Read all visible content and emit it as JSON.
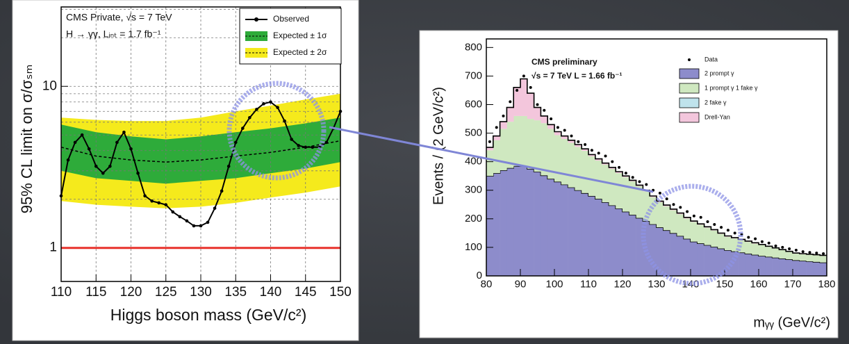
{
  "chart_data": [
    {
      "type": "line",
      "annotations": [
        "CMS Private, √s = 7 TeV",
        "H → γγ, Lᵢₙₜ = 1.7 fb⁻¹"
      ],
      "ylabel": "95% CL limit on σ/σₛₘ",
      "xlabel": "Higgs boson mass (GeV/c²)",
      "xlim": [
        110,
        150
      ],
      "xticks": [
        110,
        115,
        120,
        125,
        130,
        135,
        140,
        145,
        150
      ],
      "ylim": [
        0.62,
        31
      ],
      "ylog": true,
      "yticks": [
        1,
        10
      ],
      "minor_yticks": [
        2,
        3,
        4,
        5,
        6,
        7,
        8,
        9,
        20,
        30
      ],
      "grid": true,
      "reference": {
        "value": 1,
        "color": "#e8322b"
      },
      "series": [
        {
          "name": "Observed",
          "color": "#000000",
          "x": [
            110,
            111,
            112,
            113,
            114,
            115,
            116,
            117,
            118,
            119,
            120,
            121,
            122,
            123,
            124,
            125,
            126,
            127,
            128,
            129,
            130,
            131,
            132,
            133,
            134,
            135,
            136,
            137,
            138,
            139,
            140,
            141,
            142,
            143,
            144,
            145,
            146,
            147,
            148,
            149,
            150
          ],
          "values": [
            2.1,
            3.5,
            4.5,
            5.0,
            4.1,
            3.2,
            2.9,
            3.2,
            4.5,
            5.2,
            4.1,
            2.9,
            2.1,
            1.95,
            1.9,
            1.85,
            1.67,
            1.56,
            1.47,
            1.37,
            1.37,
            1.44,
            1.76,
            2.25,
            3.2,
            4.5,
            5.5,
            6.4,
            7.2,
            7.8,
            8.0,
            7.4,
            6.1,
            4.7,
            4.3,
            4.2,
            4.2,
            4.2,
            4.5,
            5.5,
            7.0
          ]
        }
      ],
      "bands": [
        {
          "name": "Expected ± 1σ",
          "color": "#2eab3a",
          "x": [
            110,
            115,
            120,
            125,
            130,
            135,
            140,
            145,
            150
          ],
          "lower": [
            3.0,
            2.7,
            2.6,
            2.5,
            2.6,
            2.7,
            2.9,
            3.1,
            3.4
          ],
          "values": [
            4.2,
            3.7,
            3.5,
            3.4,
            3.5,
            3.7,
            3.9,
            4.2,
            4.6
          ],
          "upper": [
            5.8,
            5.2,
            4.9,
            4.7,
            4.9,
            5.2,
            5.5,
            5.9,
            6.4
          ]
        },
        {
          "name": "Expected ± 2σ",
          "color": "#f5ea1c",
          "x": [
            110,
            115,
            120,
            125,
            130,
            135,
            140,
            145,
            150
          ],
          "lower": [
            1.95,
            1.85,
            1.8,
            1.76,
            1.8,
            1.9,
            2.05,
            2.2,
            2.4
          ],
          "upper": [
            6.4,
            6.2,
            6.1,
            6.1,
            6.4,
            7.0,
            7.6,
            8.3,
            9.0
          ]
        }
      ],
      "legend": "top-right"
    },
    {
      "type": "histogram",
      "annotations": [
        "CMS preliminary",
        "√s = 7 TeV L = 1.66 fb⁻¹"
      ],
      "ylabel": "Events / (2 GeV/c²)",
      "xlabel": "mᵧᵧ (GeV/c²)",
      "xlim": [
        80,
        180
      ],
      "xticks": [
        80,
        90,
        100,
        110,
        120,
        130,
        140,
        150,
        160,
        170,
        180
      ],
      "ylim": [
        0,
        830
      ],
      "yticks": [
        0,
        100,
        200,
        300,
        400,
        500,
        600,
        700,
        800
      ],
      "bins": [
        80,
        82,
        84,
        86,
        88,
        90,
        92,
        94,
        96,
        98,
        100,
        102,
        104,
        106,
        108,
        110,
        112,
        114,
        116,
        118,
        120,
        122,
        124,
        126,
        128,
        130,
        132,
        134,
        136,
        138,
        140,
        142,
        144,
        146,
        148,
        150,
        152,
        154,
        156,
        158,
        160,
        162,
        164,
        166,
        168,
        170,
        172,
        174,
        176,
        178,
        180
      ],
      "data": {
        "name": "Data",
        "color": "#000000",
        "values": [
          470,
          520,
          560,
          610,
          650,
          700,
          660,
          600,
          580,
          550,
          520,
          510,
          490,
          470,
          460,
          440,
          430,
          420,
          400,
          380,
          360,
          345,
          330,
          320,
          300,
          290,
          270,
          250,
          240,
          225,
          210,
          205,
          190,
          180,
          170,
          160,
          150,
          145,
          135,
          130,
          120,
          115,
          105,
          100,
          95,
          90,
          85,
          82,
          80,
          78
        ]
      },
      "series": [
        {
          "name": "2 prompt γ",
          "color": "#8d8ccb",
          "values": [
            350,
            360,
            370,
            378,
            385,
            385,
            375,
            365,
            352,
            340,
            330,
            320,
            310,
            300,
            290,
            280,
            270,
            258,
            247,
            236,
            225,
            214,
            203,
            192,
            181,
            170,
            160,
            150,
            140,
            130,
            120,
            114,
            108,
            102,
            96,
            90,
            86,
            82,
            78,
            74,
            70,
            67,
            64,
            61,
            58,
            55,
            53,
            51,
            49,
            47
          ]
        },
        {
          "name": "1 prompt γ 1 fake γ",
          "color": "#cfe8c0",
          "values": [
            90,
            115,
            145,
            162,
            175,
            175,
            175,
            180,
            183,
            175,
            163,
            160,
            156,
            152,
            148,
            139,
            134,
            132,
            128,
            124,
            121,
            117,
            111,
            104,
            95,
            88,
            84,
            80,
            76,
            71,
            69,
            65,
            61,
            57,
            51,
            47,
            45,
            43,
            41,
            39,
            38,
            35,
            32,
            29,
            26,
            23,
            23,
            23,
            23,
            23
          ]
        },
        {
          "name": "2 fake γ",
          "color": "#bfe3ec",
          "values": [
            0,
            0,
            0,
            0,
            0,
            0,
            0,
            0,
            0,
            0,
            0,
            0,
            0,
            0,
            0,
            0,
            0,
            0,
            0,
            0,
            0,
            0,
            0,
            0,
            0,
            0,
            0,
            0,
            0,
            0,
            0,
            0,
            0,
            0,
            0,
            0,
            0,
            0,
            0,
            0,
            0,
            0,
            0,
            0,
            0,
            0,
            0,
            0,
            0,
            0
          ]
        },
        {
          "name": "Drell-Yan",
          "color": "#f3c6dc",
          "values": [
            10,
            15,
            25,
            50,
            100,
            130,
            90,
            45,
            25,
            15,
            12,
            10,
            9,
            8,
            7,
            6,
            6,
            5,
            5,
            5,
            4,
            4,
            4,
            4,
            4,
            4,
            4,
            4,
            4,
            4,
            3,
            3,
            3,
            3,
            3,
            3,
            3,
            3,
            3,
            3,
            2,
            2,
            2,
            2,
            2,
            2,
            2,
            2,
            2,
            2
          ]
        }
      ],
      "legend": "top-right"
    }
  ]
}
